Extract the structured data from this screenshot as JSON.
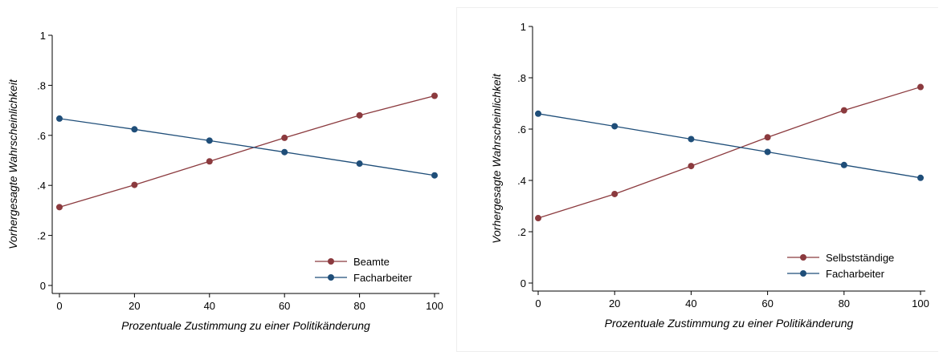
{
  "chart_data": [
    {
      "type": "line",
      "x": [
        0,
        20,
        40,
        60,
        80,
        100
      ],
      "series": [
        {
          "name": "Beamte",
          "values": [
            0.313,
            0.402,
            0.496,
            0.59,
            0.68,
            0.758
          ],
          "color": "#8b3a3e"
        },
        {
          "name": "Facharbeiter",
          "values": [
            0.667,
            0.624,
            0.579,
            0.533,
            0.487,
            0.44
          ],
          "color": "#1f4e79"
        }
      ],
      "xlabel": "Prozentuale Zustimmung zu einer Politikänderung",
      "ylabel": "Vorhergesagte Wahrscheinlichkeit",
      "xticks": [
        "0",
        "20",
        "40",
        "60",
        "80",
        "100"
      ],
      "yticks": [
        "0",
        ".2",
        ".4",
        ".6",
        ".8",
        "1"
      ],
      "xlim": [
        0,
        100
      ],
      "ylim": [
        0,
        1
      ],
      "grid": false,
      "legend_position": "bottom-right"
    },
    {
      "type": "line",
      "x": [
        0,
        20,
        40,
        60,
        80,
        100
      ],
      "series": [
        {
          "name": "Selbstständige",
          "values": [
            0.253,
            0.347,
            0.456,
            0.568,
            0.673,
            0.764
          ],
          "color": "#8b3a3e"
        },
        {
          "name": "Facharbeiter",
          "values": [
            0.66,
            0.611,
            0.561,
            0.511,
            0.46,
            0.41
          ],
          "color": "#1f4e79"
        }
      ],
      "xlabel": "Prozentuale Zustimmung zu einer Politikänderung",
      "ylabel": "Vorhergesagte Wahrscheinlichkeit",
      "xticks": [
        "0",
        "20",
        "40",
        "60",
        "80",
        "100"
      ],
      "yticks": [
        "0",
        ".2",
        ".4",
        ".6",
        ".8",
        "1"
      ],
      "xlim": [
        0,
        100
      ],
      "ylim": [
        0,
        1
      ],
      "grid": false,
      "legend_position": "bottom-right"
    }
  ]
}
